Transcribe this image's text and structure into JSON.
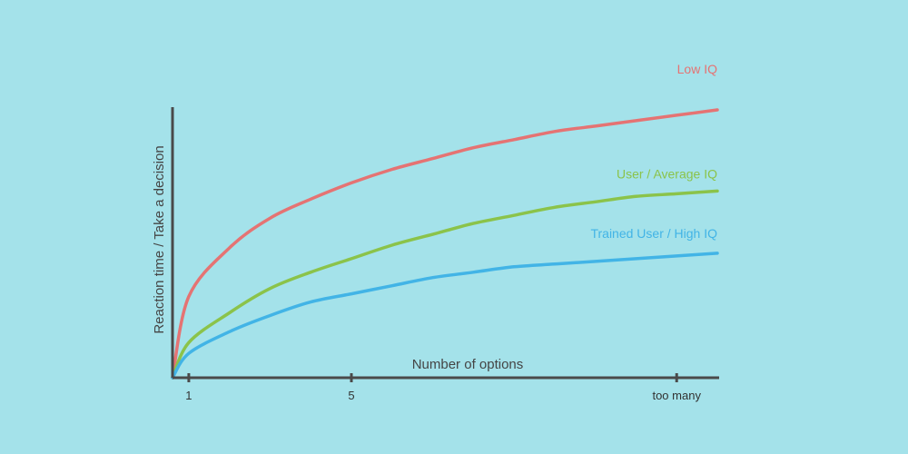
{
  "chart_data": {
    "type": "line",
    "title": "",
    "xlabel": "Number of options",
    "ylabel": "Reaction time / Take a decision",
    "xticks": [
      {
        "value": 1,
        "label": "1"
      },
      {
        "value": 5,
        "label": "5"
      },
      {
        "value": 13,
        "label": "too many"
      }
    ],
    "xlim": [
      0.6,
      14.0
    ],
    "ylim": [
      0,
      10
    ],
    "grid": false,
    "series": [
      {
        "name": "Low IQ",
        "color": "#e57373",
        "x": [
          0.6,
          1,
          2,
          3,
          4,
          5,
          6,
          7,
          8,
          9,
          10,
          11,
          12,
          13,
          14
        ],
        "y": [
          0.0,
          3.0,
          4.8,
          5.9,
          6.6,
          7.2,
          7.7,
          8.1,
          8.5,
          8.8,
          9.1,
          9.3,
          9.5,
          9.7,
          9.9
        ]
      },
      {
        "name": "User / Average IQ",
        "color": "#8bc34a",
        "x": [
          0.6,
          1,
          2,
          3,
          4,
          5,
          6,
          7,
          8,
          9,
          10,
          11,
          12,
          13,
          14
        ],
        "y": [
          0.0,
          1.3,
          2.4,
          3.3,
          3.9,
          4.4,
          4.9,
          5.3,
          5.7,
          6.0,
          6.3,
          6.5,
          6.7,
          6.8,
          6.9
        ]
      },
      {
        "name": "Trained User / High IQ",
        "color": "#42b4e6",
        "x": [
          0.6,
          1,
          2,
          3,
          4,
          5,
          6,
          7,
          8,
          9,
          10,
          11,
          12,
          13,
          14
        ],
        "y": [
          0.0,
          0.9,
          1.7,
          2.3,
          2.8,
          3.1,
          3.4,
          3.7,
          3.9,
          4.1,
          4.2,
          4.3,
          4.4,
          4.5,
          4.6
        ]
      }
    ]
  },
  "colors": {
    "background": "#a4e2ea",
    "axis": "#4a4a4a"
  }
}
